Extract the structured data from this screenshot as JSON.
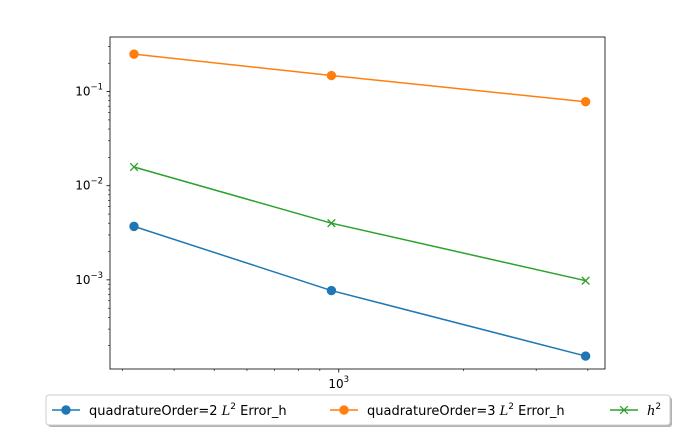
{
  "chart_data": {
    "type": "line",
    "xscale": "log",
    "yscale": "log",
    "xlim": [
      280,
      4400
    ],
    "ylim": [
      0.000113,
      0.38
    ],
    "x_tick_labels": [
      {
        "base": "10",
        "exp": "3",
        "value": 1000
      }
    ],
    "y_tick_labels": [
      {
        "base": "10",
        "exp": "−3",
        "value": 0.001
      },
      {
        "base": "10",
        "exp": "−2",
        "value": 0.01
      },
      {
        "base": "10",
        "exp": "−1",
        "value": 0.1
      }
    ],
    "grid": false,
    "legend_placement": "bottom-center",
    "series": [
      {
        "label_main": "quadratureOrder=2 ",
        "label_l": "L",
        "label_sup": "2",
        "label_tail": " Error_h",
        "color": "#1f77b4",
        "marker": "circle",
        "x": [
          320,
          960,
          3950
        ],
        "y": [
          0.0037,
          0.00077,
          0.000155
        ]
      },
      {
        "label_main": "quadratureOrder=3 ",
        "label_l": "L",
        "label_sup": "2",
        "label_tail": " Error_h",
        "color": "#ff7f0e",
        "marker": "circle",
        "x": [
          320,
          960,
          3950
        ],
        "y": [
          0.25,
          0.148,
          0.078
        ]
      },
      {
        "label_main": "",
        "label_l": "h",
        "label_sup": "2",
        "label_tail": "",
        "color": "#2ca02c",
        "marker": "x",
        "x": [
          320,
          960,
          3950
        ],
        "y": [
          0.0158,
          0.004,
          0.00098
        ]
      }
    ]
  }
}
